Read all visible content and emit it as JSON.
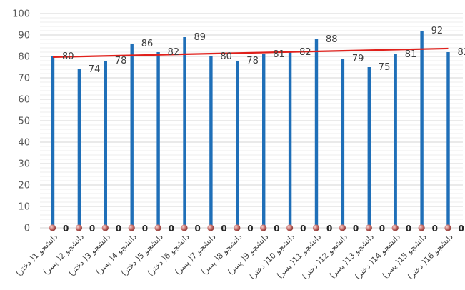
{
  "chart_data": {
    "type": "bar",
    "categories": [
      "دانشجو 1( دختر)",
      "دانشجو 2( پسر)",
      "دانشجو 3( دختر)",
      "دانشجو 4( پسر)",
      "دانشجو 5( دختر)",
      "دانشجو 6( دختر)",
      "دانشجو 7( پسر)",
      "دانشجو 8( پسر)",
      "دانشجو 9( پسر)",
      "دانشجو 10( دختر)",
      "دانشجو 11( پسر)",
      "دانشجو 12( دختر)",
      "دانشجو 13( پسر)",
      "دانشجو 14( دختر)",
      "دانشجو 15( پسر)",
      "دانشجو 16( دختر)"
    ],
    "series": [
      {
        "values": [
          80,
          74,
          78,
          86,
          82,
          89,
          80,
          78,
          81,
          82,
          88,
          79,
          75,
          81,
          92,
          82
        ],
        "color": "#1f6fb8"
      },
      {
        "values": [
          0,
          0,
          0,
          0,
          0,
          0,
          0,
          0,
          0,
          0,
          0,
          0,
          0,
          0,
          0,
          0
        ],
        "color": "#c0504d",
        "marker": "circle"
      }
    ],
    "trendline": {
      "type": "linear",
      "color": "#e0201b"
    },
    "ylim": [
      0,
      100
    ],
    "yticks": [
      0,
      10,
      20,
      30,
      40,
      50,
      60,
      70,
      80,
      90,
      100
    ],
    "grid": true,
    "title": "",
    "xlabel": "",
    "ylabel": ""
  }
}
